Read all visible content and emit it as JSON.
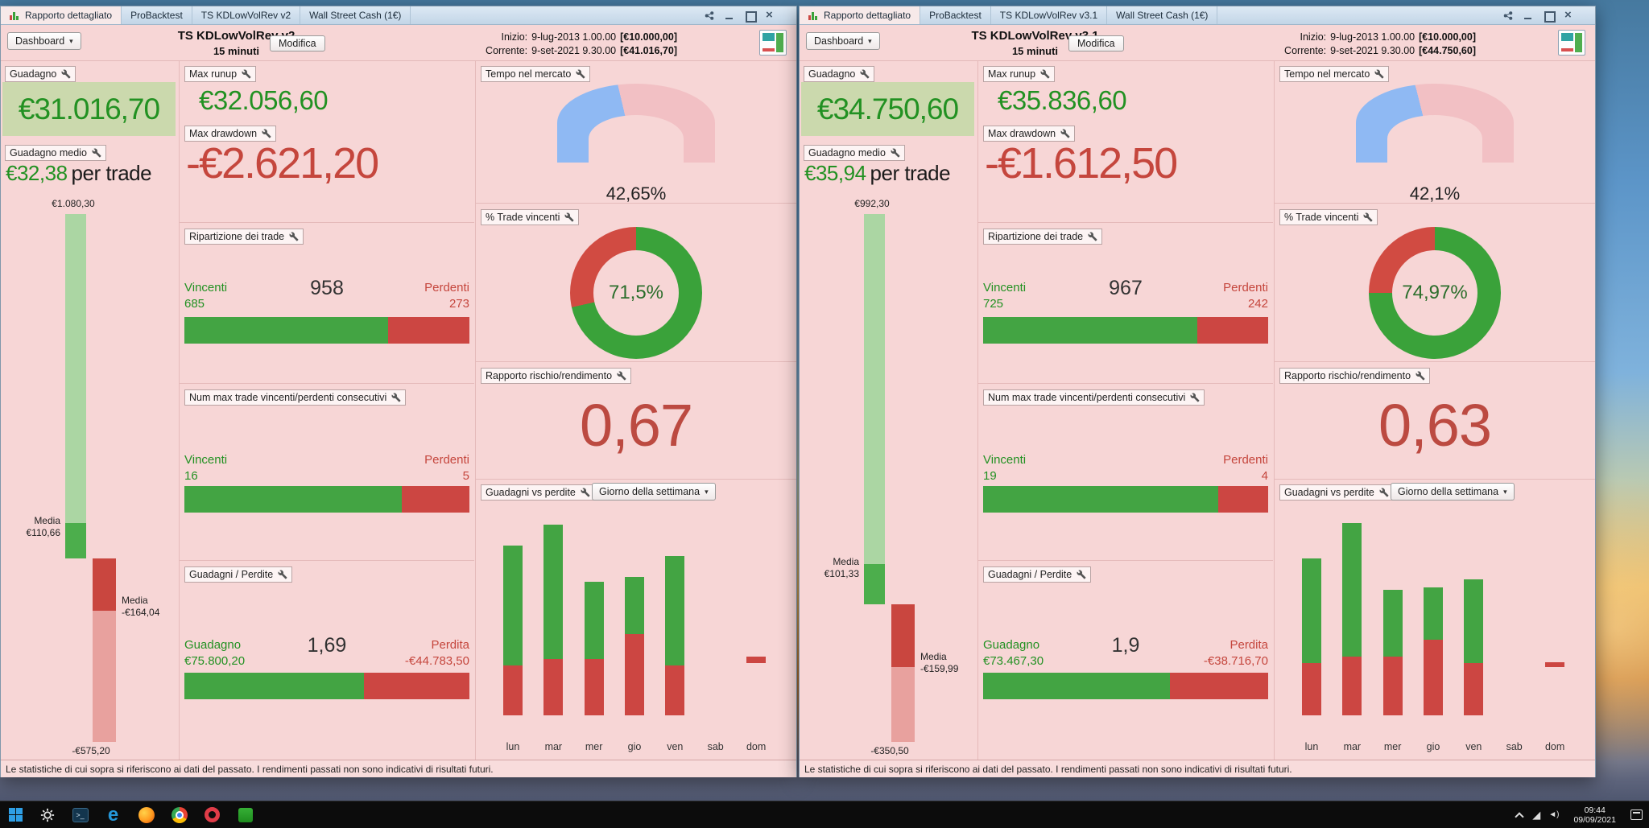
{
  "desktop": {
    "taskbar": {
      "tray_time": "09:44",
      "tray_date": "09/09/2021",
      "icons": [
        "start",
        "settings",
        "terminal",
        "edge",
        "firefox",
        "chrome",
        "opera",
        "trading-app"
      ]
    }
  },
  "windows": [
    {
      "tabs": {
        "t1": "Rapporto dettagliato",
        "t2": "ProBacktest",
        "t3": "TS KDLowVolRev v2",
        "t4": "Wall Street Cash (1€)"
      },
      "header": {
        "dashboard": "Dashboard",
        "title": "TS KDLowVolRev v2",
        "subtitle": "15 minuti",
        "modifica": "Modifica",
        "inizio_label": "Inizio:",
        "inizio_value": "9-lug-2013 1.00.00",
        "inizio_capital": "[€10.000,00]",
        "corrente_label": "Corrente:",
        "corrente_value": "9-set-2021 9.30.00",
        "corrente_capital": "[€41.016,70]"
      },
      "guadagno": {
        "label": "Guadagno",
        "value": "€31.016,70"
      },
      "guadagno_medio": {
        "label": "Guadagno medio",
        "value": "€32,38",
        "suffix": "per trade"
      },
      "trade_range_chart": {
        "type": "range-bar",
        "max_win": 1080.3,
        "max_win_label": "€1.080,30",
        "avg_win": 110.66,
        "avg_win_label": "Media",
        "avg_win_value": "€110,66",
        "avg_loss": 164.04,
        "avg_loss_label": "Media",
        "avg_loss_value": "-€164,04",
        "max_loss": 575.2,
        "max_loss_label": "-€575,20"
      },
      "max_runup": {
        "label": "Max runup",
        "value": "€32.056,60"
      },
      "max_drawdown": {
        "label": "Max drawdown",
        "value": "-€2.621,20"
      },
      "ripartizione": {
        "label": "Ripartizione dei trade",
        "win_label": "Vincenti",
        "win_value": "685",
        "total": "958",
        "loss_label": "Perdenti",
        "loss_value": "273",
        "win_pct": 71.5
      },
      "tempo_mercato": {
        "label": "Tempo nel mercato",
        "value": "42,65%",
        "pct": 42.65
      },
      "trade_vincenti": {
        "label": "% Trade vincenti",
        "value": "71,5%",
        "pct": 71.5
      },
      "max_consecutivi": {
        "label": "Num max trade vincenti/perdenti consecutivi",
        "win_label": "Vincenti",
        "win_value": "16",
        "loss_label": "Perdenti",
        "loss_value": "5",
        "win_pct": 76.2
      },
      "rischio_rendimento": {
        "label": "Rapporto rischio/rendimento",
        "value": "0,67"
      },
      "guadagni_perdite": {
        "label": "Guadagni / Perdite",
        "win_label": "Guadagno",
        "win_value": "€75.800,20",
        "ratio": "1,69",
        "loss_label": "Perdita",
        "loss_value": "-€44.783,50",
        "win_pct": 62.9
      },
      "weekly_chart": {
        "label": "Guadagni vs perdite",
        "selector": "Giorno della settimana",
        "type": "stacked-bar",
        "days": [
          "lun",
          "mar",
          "mer",
          "gio",
          "ven",
          "sab",
          "dom"
        ],
        "gains_rel": [
          57,
          64,
          37,
          27,
          52,
          0,
          0
        ],
        "losses_rel": [
          24,
          27,
          27,
          39,
          24,
          0,
          3
        ],
        "float_rel": [
          0,
          0,
          0,
          0,
          0,
          0,
          25
        ]
      },
      "disclaimer": "Le statistiche di cui sopra si riferiscono ai dati del passato. I rendimenti passati non sono indicativi di risultati futuri."
    },
    {
      "tabs": {
        "t1": "Rapporto dettagliato",
        "t2": "ProBacktest",
        "t3": "TS KDLowVolRev v3.1",
        "t4": "Wall Street Cash (1€)"
      },
      "header": {
        "dashboard": "Dashboard",
        "title": "TS KDLowVolRev v3.1",
        "subtitle": "15 minuti",
        "modifica": "Modifica",
        "inizio_label": "Inizio:",
        "inizio_value": "9-lug-2013 1.00.00",
        "inizio_capital": "[€10.000,00]",
        "corrente_label": "Corrente:",
        "corrente_value": "9-set-2021 9.30.00",
        "corrente_capital": "[€44.750,60]"
      },
      "guadagno": {
        "label": "Guadagno",
        "value": "€34.750,60"
      },
      "guadagno_medio": {
        "label": "Guadagno medio",
        "value": "€35,94",
        "suffix": "per trade"
      },
      "trade_range_chart": {
        "type": "range-bar",
        "max_win": 992.3,
        "max_win_label": "€992,30",
        "avg_win": 101.33,
        "avg_win_label": "Media",
        "avg_win_value": "€101,33",
        "avg_loss": 159.99,
        "avg_loss_label": "Media",
        "avg_loss_value": "-€159,99",
        "max_loss": 350.5,
        "max_loss_label": "-€350,50"
      },
      "max_runup": {
        "label": "Max runup",
        "value": "€35.836,60"
      },
      "max_drawdown": {
        "label": "Max drawdown",
        "value": "-€1.612,50"
      },
      "ripartizione": {
        "label": "Ripartizione dei trade",
        "win_label": "Vincenti",
        "win_value": "725",
        "total": "967",
        "loss_label": "Perdenti",
        "loss_value": "242",
        "win_pct": 75.0
      },
      "tempo_mercato": {
        "label": "Tempo nel mercato",
        "value": "42,1%",
        "pct": 42.1
      },
      "trade_vincenti": {
        "label": "% Trade vincenti",
        "value": "74,97%",
        "pct": 74.97
      },
      "max_consecutivi": {
        "label": "Num max trade vincenti/perdenti consecutivi",
        "win_label": "Vincenti",
        "win_value": "19",
        "loss_label": "Perdenti",
        "loss_value": "4",
        "win_pct": 82.6
      },
      "rischio_rendimento": {
        "label": "Rapporto rischio/rendimento",
        "value": "0,63"
      },
      "guadagni_perdite": {
        "label": "Guadagni / Perdite",
        "win_label": "Guadagno",
        "win_value": "€73.467,30",
        "ratio": "1,9",
        "loss_label": "Perdita",
        "loss_value": "-€38.716,70",
        "win_pct": 65.5
      },
      "weekly_chart": {
        "label": "Guadagni vs perdite",
        "selector": "Giorno della settimana",
        "type": "stacked-bar",
        "days": [
          "lun",
          "mar",
          "mer",
          "gio",
          "ven",
          "sab",
          "dom"
        ],
        "gains_rel": [
          50,
          64,
          32,
          25,
          40,
          0,
          0
        ],
        "losses_rel": [
          25,
          28,
          28,
          36,
          25,
          0,
          2.5
        ],
        "float_rel": [
          0,
          0,
          0,
          0,
          0,
          0,
          23
        ]
      },
      "disclaimer": "Le statistiche di cui sopra si riferiscono ai dati del passato. I rendimenti passati non sono indicativi di risultati futuri."
    }
  ]
}
